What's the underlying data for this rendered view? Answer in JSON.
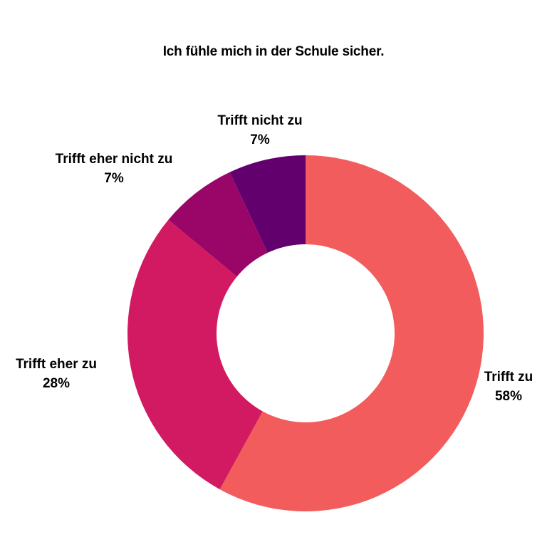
{
  "chart_data": {
    "type": "pie",
    "donut": true,
    "title": "Ich fühle mich in der Schule sicher.",
    "categories": [
      "Trifft zu",
      "Trifft eher zu",
      "Trifft eher nicht zu",
      "Trifft nicht zu"
    ],
    "values": [
      58,
      28,
      7,
      7
    ],
    "value_labels": [
      "58%",
      "28%",
      "7%",
      "7%"
    ],
    "colors": [
      "#f25c5c",
      "#d21a62",
      "#9a0668",
      "#62006e"
    ],
    "start": "12 o'clock",
    "direction": "clockwise",
    "legend": "none"
  }
}
